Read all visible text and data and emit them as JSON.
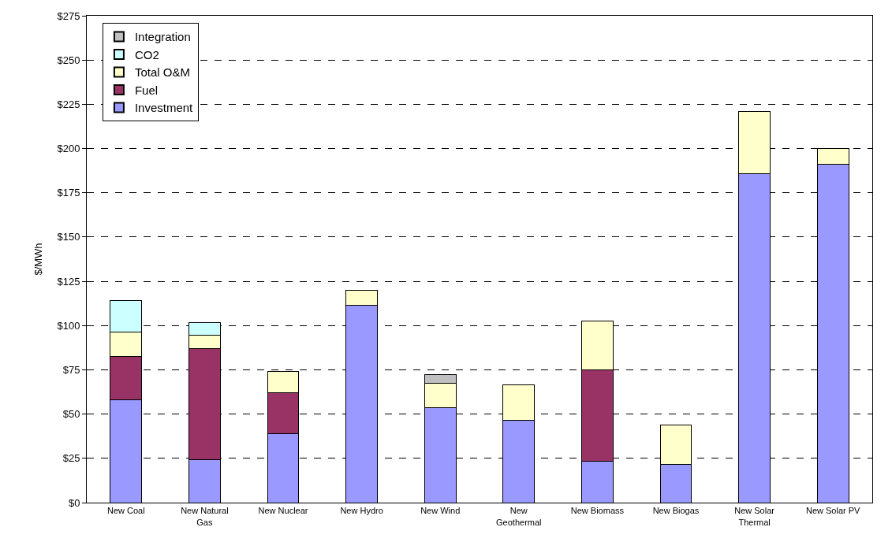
{
  "chart_data": {
    "type": "bar",
    "stacked": true,
    "ylabel": "$/MWh",
    "categories": [
      "New Coal",
      "New Natural Gas",
      "New Nuclear",
      "New Hydro",
      "New Wind",
      "New Geothermal",
      "New Biomass",
      "New Biogas",
      "New Solar Thermal",
      "New Solar PV"
    ],
    "series": [
      {
        "name": "Investment",
        "color": "#9999ff",
        "values": [
          58.0,
          24.4,
          38.8,
          111.5,
          53.6,
          46.7,
          23.2,
          21.7,
          185.7,
          191.0
        ]
      },
      {
        "name": "Fuel",
        "color": "#993366",
        "values": [
          24.7,
          62.8,
          23.2,
          null,
          null,
          null,
          51.7,
          null,
          null,
          null
        ]
      },
      {
        "name": "Total O&M",
        "color": "#ffffcc",
        "values": [
          13.8,
          7.5,
          12.1,
          8.5,
          14.0,
          20.0,
          27.8,
          22.3,
          35.2,
          8.9
        ]
      },
      {
        "name": "CO2",
        "color": "#ccffff",
        "values": [
          17.7,
          6.8,
          null,
          null,
          null,
          null,
          null,
          null,
          null,
          null
        ]
      },
      {
        "name": "Integration",
        "color": "#c0c0c0",
        "values": [
          null,
          null,
          null,
          null,
          4.5,
          null,
          null,
          null,
          null,
          null
        ]
      }
    ],
    "ylim": [
      0,
      275
    ],
    "yticks": [
      {
        "value": 0,
        "label": "$0"
      },
      {
        "value": 25,
        "label": "$25"
      },
      {
        "value": 50,
        "label": "$50"
      },
      {
        "value": 75,
        "label": "$75"
      },
      {
        "value": 100,
        "label": "$100"
      },
      {
        "value": 125,
        "label": "$125"
      },
      {
        "value": 150,
        "label": "$150"
      },
      {
        "value": 175,
        "label": "$175"
      },
      {
        "value": 200,
        "label": "$200"
      },
      {
        "value": 225,
        "label": "$225"
      },
      {
        "value": 250,
        "label": "$250"
      },
      {
        "value": 275,
        "label": "$275"
      }
    ],
    "grid": "y",
    "legend": "top left"
  }
}
